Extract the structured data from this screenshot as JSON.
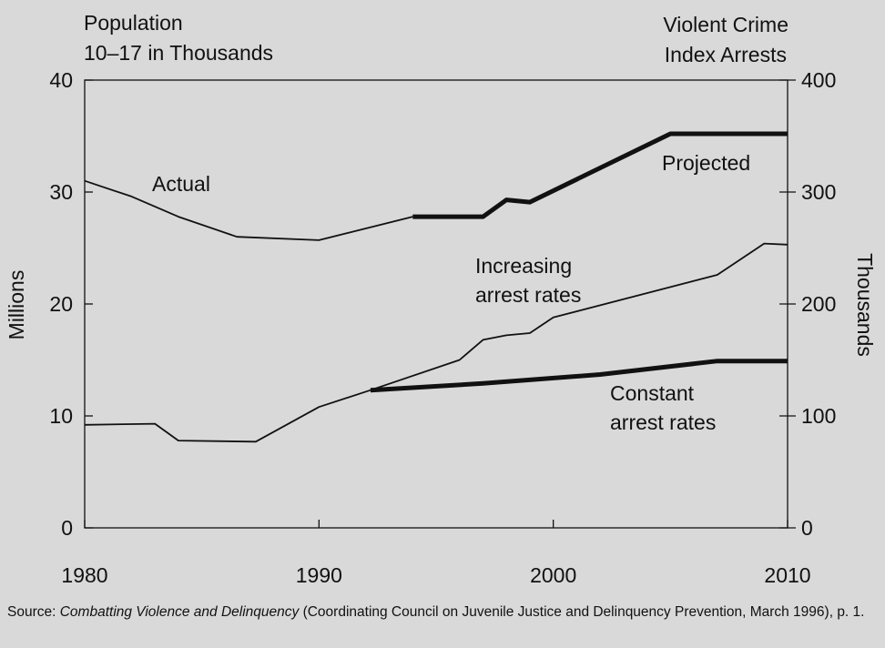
{
  "chart_data": {
    "type": "line",
    "left_axis": {
      "title_lines": [
        "Population",
        "10–17 in Thousands"
      ],
      "side_label": "Millions",
      "ylim": [
        0,
        40
      ],
      "ticks": [
        "0",
        "10",
        "20",
        "30",
        "40"
      ]
    },
    "right_axis": {
      "title_lines": [
        "Violent Crime",
        "Index Arrests"
      ],
      "side_label": "Thousands",
      "ylim": [
        0,
        400
      ],
      "ticks": [
        "0",
        "100",
        "200",
        "300",
        "400"
      ]
    },
    "x_axis": {
      "xlim": [
        1980,
        2010
      ],
      "ticks": [
        "1980",
        "1990",
        "2000",
        "2010"
      ]
    },
    "annotations": {
      "actual": "Actual",
      "projected": "Projected",
      "increasing": [
        "Increasing",
        "arrest rates"
      ],
      "constant": [
        "Constant",
        "arrest rates"
      ]
    },
    "series": [
      {
        "id": "population-actual",
        "axis": "left",
        "style": "thin",
        "x": [
          1980,
          1982,
          1984,
          1986.5,
          1990,
          1994
        ],
        "y": [
          31,
          29.6,
          27.8,
          26,
          25.7,
          27.8
        ]
      },
      {
        "id": "population-projected",
        "axis": "left",
        "style": "thick",
        "x": [
          1994,
          1997,
          1998,
          1999,
          2005,
          2010
        ],
        "y": [
          27.8,
          27.8,
          29.3,
          29.1,
          35.2,
          35.2
        ]
      },
      {
        "id": "arrests-actual",
        "axis": "right",
        "style": "thin",
        "x": [
          1980,
          1983,
          1984,
          1987.3,
          1990,
          1992.2
        ],
        "y": [
          92,
          93,
          78,
          77,
          108,
          123
        ]
      },
      {
        "id": "arrests-increasing",
        "axis": "right",
        "style": "thin",
        "x": [
          1992.2,
          1996,
          1997,
          1998,
          1999,
          2000,
          2007,
          2009,
          2010
        ],
        "y": [
          123,
          150,
          168,
          172,
          174,
          188,
          226,
          254,
          253
        ]
      },
      {
        "id": "arrests-constant",
        "axis": "right",
        "style": "thick",
        "x": [
          1992.2,
          1997,
          2002,
          2007,
          2010
        ],
        "y": [
          123,
          129,
          137,
          149,
          149
        ]
      }
    ]
  },
  "source": {
    "prefix": "Source: ",
    "title": "Combatting Violence and Delinquency",
    "rest": " (Coordinating Council on Juvenile Justice and Delinquency Prevention, March 1996), p. 1."
  }
}
